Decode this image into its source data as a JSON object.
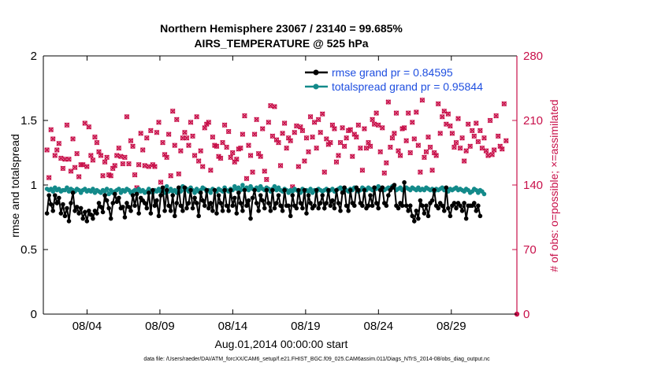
{
  "chart_data": {
    "type": "line",
    "title_line1": "Northern Hemisphere 23067 / 23140 = 99.685%",
    "title_line2": "AIRS_TEMPERATURE @ 525 hPa",
    "xlabel": "Aug.01,2014 00:00:00 start",
    "ylabel_left": "rmse and totalspread",
    "ylabel_right": "# of obs: o=possible; ×=assimilated",
    "x_range_days": [
      0,
      32.5
    ],
    "x_ticks": [
      {
        "day": 3,
        "label": "08/04"
      },
      {
        "day": 8,
        "label": "08/09"
      },
      {
        "day": 13,
        "label": "08/14"
      },
      {
        "day": 18,
        "label": "08/19"
      },
      {
        "day": 23,
        "label": "08/24"
      },
      {
        "day": 28,
        "label": "08/29"
      }
    ],
    "y_left_range": [
      0,
      2
    ],
    "y_left_ticks": [
      "0",
      "0.5",
      "1",
      "1.5",
      "2"
    ],
    "y_right_range": [
      0,
      280
    ],
    "y_right_ticks": [
      "0",
      "70",
      "140",
      "210",
      "280"
    ],
    "legend": [
      {
        "label": "rmse grand pr = 0.84595",
        "color": "#000000"
      },
      {
        "label": "totalspread grand pr = 0.95844",
        "color": "#138a8a"
      }
    ],
    "series": [
      {
        "name": "rmse",
        "color": "#000000",
        "values": [
          0.78,
          0.92,
          0.85,
          0.8,
          0.92,
          0.86,
          0.9,
          0.78,
          0.85,
          0.76,
          0.82,
          0.72,
          0.86,
          0.94,
          0.8,
          0.83,
          0.78,
          0.82,
          0.74,
          0.79,
          0.72,
          0.8,
          0.77,
          0.74,
          0.8,
          0.78,
          0.86,
          0.83,
          0.79,
          0.92,
          0.88,
          0.82,
          0.74,
          0.86,
          0.93,
          0.87,
          0.9,
          0.82,
          0.83,
          0.75,
          0.86,
          0.83,
          0.8,
          0.92,
          0.84,
          0.93,
          0.78,
          0.9,
          0.88,
          0.86,
          0.82,
          0.94,
          0.78,
          0.96,
          0.84,
          0.88,
          0.76,
          0.92,
          0.98,
          0.8,
          0.96,
          0.84,
          0.8,
          0.92,
          0.76,
          0.86,
          0.98,
          0.84,
          0.8,
          0.98,
          0.82,
          0.86,
          0.96,
          0.82,
          0.9,
          0.86,
          0.76,
          0.94,
          0.88,
          0.84,
          0.96,
          0.82,
          0.86,
          0.8,
          0.96,
          0.78,
          0.92,
          0.86,
          0.8,
          0.96,
          0.84,
          0.8,
          0.96,
          0.84,
          0.9,
          0.78,
          0.94,
          0.86,
          0.8,
          0.96,
          0.84,
          0.88,
          0.74,
          0.9,
          0.96,
          0.86,
          0.8,
          0.92,
          0.88,
          0.82,
          0.96,
          0.86,
          0.8,
          0.96,
          0.82,
          0.86,
          0.92,
          0.84,
          0.8,
          0.96,
          0.84,
          0.84,
          0.76,
          0.92,
          0.84,
          0.82,
          0.96,
          0.86,
          0.82,
          0.96,
          0.78,
          0.92,
          0.86,
          0.82,
          0.84,
          0.96,
          0.82,
          0.86,
          0.92,
          0.82,
          0.86,
          0.96,
          0.84,
          0.88,
          0.82,
          0.96,
          0.86,
          0.8,
          0.94,
          0.98,
          0.84,
          0.8,
          0.96,
          0.86,
          0.84,
          0.98,
          0.96,
          0.86,
          0.84,
          0.96,
          0.82,
          0.84,
          0.92,
          0.84,
          0.98,
          0.86,
          0.82,
          0.96,
          0.98,
          0.86,
          0.84,
          0.92,
          0.96,
          0.98,
          1.0,
          0.84,
          0.82,
          0.86,
          0.84,
          1.02,
          0.84,
          0.8,
          0.84,
          0.76,
          0.72,
          0.8,
          0.74,
          0.88,
          0.84,
          0.78,
          0.84,
          0.76,
          0.86,
          0.88,
          0.96,
          0.84,
          0.82,
          0.86,
          0.84,
          0.8,
          0.98,
          0.82,
          0.76,
          0.84,
          0.86,
          0.82,
          0.86,
          0.84,
          0.8,
          0.86,
          0.74,
          0.84,
          0.84,
          0.84,
          0.86,
          0.8,
          0.84,
          0.76
        ]
      },
      {
        "name": "totalspread",
        "color": "#138a8a",
        "values": [
          0.97,
          0.96,
          0.97,
          0.95,
          0.98,
          0.96,
          0.97,
          0.95,
          0.96,
          0.96,
          0.98,
          0.95,
          0.97,
          0.96,
          0.95,
          0.97,
          0.96,
          0.94,
          0.96,
          0.97,
          0.95,
          0.96,
          0.95,
          0.97,
          0.94,
          0.96,
          0.95,
          0.94,
          0.96,
          0.95,
          0.97,
          0.93,
          0.96,
          0.94,
          0.95,
          0.96,
          0.97,
          0.94,
          0.96,
          0.95,
          0.97,
          0.96,
          0.94,
          0.95,
          0.96,
          0.94,
          0.97,
          0.95,
          0.96,
          0.94,
          0.95,
          0.97,
          0.95,
          0.94,
          0.96,
          0.95,
          0.97,
          0.95,
          0.96,
          0.94,
          0.99,
          0.95,
          0.97,
          0.95,
          0.96,
          0.94,
          0.97,
          0.95,
          0.99,
          0.96,
          0.97,
          0.95,
          0.98,
          0.96,
          0.94,
          0.97,
          0.95,
          0.96,
          0.98,
          0.97,
          0.95,
          0.96,
          0.94,
          0.97,
          0.96,
          0.95,
          0.97,
          0.96,
          0.95,
          0.98,
          0.96,
          0.95,
          0.97,
          0.96,
          0.99,
          0.97,
          0.98,
          0.96,
          1.0,
          0.97,
          0.98,
          0.96,
          0.99,
          0.97,
          0.96,
          0.98,
          0.96,
          0.99,
          0.97,
          0.96,
          0.98,
          0.97,
          0.95,
          0.97,
          0.99,
          0.96,
          0.98,
          0.96,
          0.95,
          0.97,
          0.96,
          0.94,
          0.96,
          0.95,
          0.97,
          0.96,
          0.95,
          0.94,
          0.97,
          0.95,
          0.96,
          0.95,
          0.97,
          0.94,
          0.96,
          0.95,
          0.97,
          0.96,
          0.95,
          0.96,
          0.97,
          0.95,
          0.96,
          0.97,
          0.95,
          0.96,
          0.97,
          0.98,
          0.96,
          0.97,
          0.96,
          0.95,
          0.97,
          0.96,
          0.98,
          0.97,
          0.95,
          0.96,
          0.98,
          0.97,
          0.96,
          0.98,
          0.97,
          0.96,
          0.98,
          0.97,
          0.99,
          0.97,
          0.98,
          0.96,
          0.97,
          0.98,
          0.97,
          0.99,
          0.98,
          0.96,
          0.97,
          0.98,
          0.96,
          0.97,
          0.98,
          0.97,
          0.96,
          0.98,
          0.97,
          0.96,
          0.98,
          0.96,
          0.97,
          0.96,
          0.98,
          0.97,
          0.96,
          0.97,
          0.95,
          0.97,
          0.96,
          0.97,
          0.98,
          0.96,
          0.97,
          0.95,
          0.97,
          0.96,
          0.97,
          0.98,
          0.96,
          0.97,
          0.96,
          0.95,
          0.97,
          0.96,
          0.94,
          0.95,
          0.97,
          0.96,
          0.94,
          0.96,
          0.95,
          0.93
        ]
      },
      {
        "name": "obs_assimilated",
        "axis": "right",
        "color": "#c8104a",
        "values": [
          178,
          148,
          200,
          190,
          172,
          178,
          185,
          169,
          158,
          168,
          205,
          168,
          155,
          190,
          159,
          174,
          149,
          162,
          162,
          207,
          160,
          203,
          172,
          167,
          192,
          186,
          176,
          172,
          150,
          165,
          170,
          151,
          150,
          158,
          161,
          172,
          180,
          171,
          163,
          170,
          214,
          163,
          188,
          182,
          151,
          137,
          162,
          196,
          178,
          161,
          191,
          160,
          199,
          162,
          160,
          197,
          208,
          143,
          186,
          173,
          170,
          195,
          150,
          220,
          183,
          211,
          152,
          177,
          191,
          197,
          191,
          183,
          208,
          193,
          172,
          214,
          166,
          177,
          160,
          202,
          206,
          208,
          156,
          192,
          183,
          182,
          171,
          169,
          186,
          205,
          181,
          198,
          170,
          175,
          165,
          168,
          179,
          180,
          195,
          215,
          147,
          183,
          172,
          154,
          195,
          211,
          174,
          171,
          201,
          155,
          146,
          208,
          226,
          193,
          225,
          189,
          186,
          161,
          196,
          207,
          180,
          191,
          188,
          138,
          197,
          204,
          160,
          203,
          199,
          166,
          191,
          176,
          214,
          192,
          208,
          180,
          211,
          197,
          217,
          154,
          190,
          184,
          186,
          205,
          201,
          165,
          172,
          186,
          202,
          182,
          191,
          199,
          200,
          171,
          195,
          192,
          205,
          180,
          156,
          201,
          180,
          186,
          182,
          211,
          206,
          218,
          205,
          176,
          202,
          153,
          164,
          230,
          181,
          191,
          196,
          218,
          177,
          172,
          201,
          202,
          188,
          218,
          175,
          208,
          190,
          219,
          183,
          154,
          232,
          170,
          176,
          192,
          181,
          156,
          175,
          172,
          228,
          196,
          214,
          220,
          206,
          217,
          204,
          196,
          181,
          186,
          212,
          180,
          191,
          166,
          177,
          206,
          182,
          199,
          193,
          207,
          187,
          199,
          180,
          191,
          177,
          172,
          210,
          173,
          178,
          215,
          193,
          182,
          179,
          228,
          188
        ]
      },
      {
        "name": "obs_possible",
        "axis": "right",
        "color": "#c8104a",
        "values": [
          178,
          148,
          200,
          190,
          172,
          178,
          185,
          169,
          158,
          168,
          205,
          168,
          155,
          190,
          159,
          174,
          149,
          162,
          162,
          207,
          160,
          203,
          172,
          167,
          192,
          186,
          176,
          172,
          150,
          165,
          170,
          151,
          150,
          158,
          161,
          172,
          180,
          171,
          163,
          170,
          214,
          163,
          188,
          182,
          151,
          137,
          162,
          196,
          178,
          161,
          191,
          160,
          199,
          162,
          160,
          197,
          208,
          143,
          186,
          173,
          170,
          195,
          150,
          220,
          183,
          211,
          152,
          177,
          191,
          197,
          191,
          183,
          208,
          193,
          172,
          214,
          166,
          177,
          160,
          202,
          206,
          208,
          156,
          192,
          183,
          182,
          171,
          169,
          186,
          205,
          181,
          198,
          170,
          175,
          165,
          168,
          179,
          180,
          195,
          215,
          147,
          183,
          172,
          154,
          195,
          211,
          174,
          171,
          201,
          155,
          146,
          208,
          226,
          193,
          225,
          189,
          186,
          161,
          196,
          207,
          180,
          191,
          188,
          138,
          197,
          204,
          160,
          203,
          199,
          166,
          191,
          176,
          214,
          192,
          208,
          180,
          211,
          197,
          217,
          154,
          190,
          184,
          186,
          205,
          201,
          165,
          172,
          186,
          202,
          182,
          191,
          199,
          200,
          171,
          195,
          192,
          205,
          180,
          156,
          201,
          180,
          186,
          182,
          211,
          206,
          218,
          205,
          176,
          202,
          153,
          164,
          230,
          181,
          191,
          196,
          218,
          177,
          172,
          201,
          202,
          188,
          218,
          175,
          208,
          190,
          219,
          183,
          154,
          232,
          170,
          176,
          192,
          181,
          156,
          175,
          172,
          228,
          196,
          214,
          220,
          206,
          217,
          204,
          196,
          181,
          186,
          212,
          180,
          191,
          166,
          177,
          206,
          182,
          199,
          193,
          207,
          187,
          199,
          180,
          191,
          177,
          172,
          210,
          173,
          178,
          215,
          193,
          182,
          179,
          228,
          188
        ]
      }
    ],
    "footnote": "data file: /Users/raeder/DAI/ATM_forcXX/CAM6_setup/f.e21.FHIST_BGC.f09_025.CAM6assim.011/Diags_NTrS_2014-08/obs_diag_output.nc"
  }
}
